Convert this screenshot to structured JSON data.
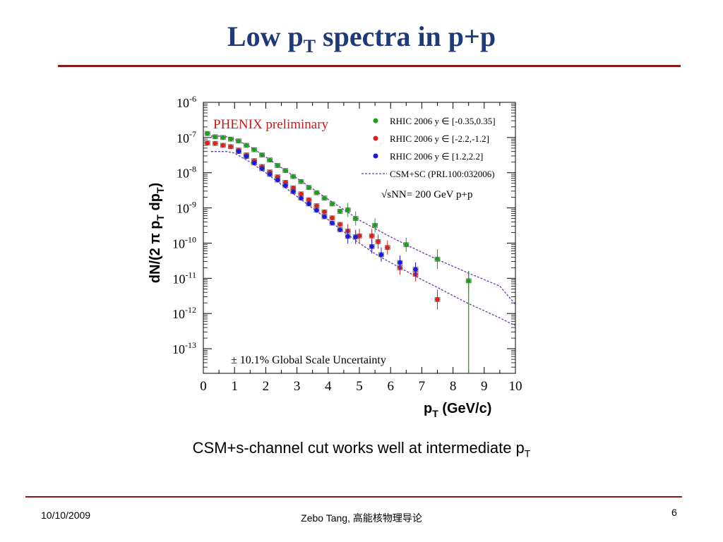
{
  "slide": {
    "title_main": "Low p",
    "title_sub": "T",
    "title_rest": " spectra in p+p",
    "caption_main": "CSM+s-channel cut works well at intermediate p",
    "caption_sub": "T",
    "footer_date": "10/10/2009",
    "footer_author": "Zebo Tang, 高能核物理导论",
    "footer_page": "6"
  },
  "chart_data": {
    "type": "scatter",
    "annotation_preliminary": "PHENIX preliminary",
    "annotation_energy": "√sNN= 200 GeV p+p",
    "annotation_uncertainty": "± 10.1% Global Scale Uncertainty",
    "xlabel": "pT (GeV/c)",
    "ylabel": "dN/(2 π pT dpT)",
    "xlim": [
      0,
      10
    ],
    "ylim_log10": [
      -13.7,
      -6
    ],
    "y_scale": "log",
    "legend_position": "top-right",
    "x_ticks": [
      "0",
      "1",
      "2",
      "3",
      "4",
      "5",
      "6",
      "7",
      "8",
      "9",
      "10"
    ],
    "y_tick_exponents": [
      "-6",
      "-7",
      "-8",
      "-9",
      "-10",
      "-11",
      "-12",
      "-13"
    ],
    "colors": {
      "green": "#1aa01a",
      "red": "#e0201a",
      "blue": "#1a1ae0",
      "model": "#6a3aaa",
      "annotation": "#d01818"
    },
    "series": [
      {
        "name": "RHIC 2006 y ∈ [-0.35,0.35]",
        "color": "#1aa01a",
        "points": [
          {
            "x": 0.13,
            "y": 1.3e-07
          },
          {
            "x": 0.38,
            "y": 1.05e-07
          },
          {
            "x": 0.63,
            "y": 1e-07
          },
          {
            "x": 0.88,
            "y": 9e-08
          },
          {
            "x": 1.13,
            "y": 8e-08
          },
          {
            "x": 1.38,
            "y": 6e-08
          },
          {
            "x": 1.63,
            "y": 4.5e-08
          },
          {
            "x": 1.88,
            "y": 3.2e-08
          },
          {
            "x": 2.13,
            "y": 2.3e-08
          },
          {
            "x": 2.38,
            "y": 1.6e-08
          },
          {
            "x": 2.63,
            "y": 1.15e-08
          },
          {
            "x": 2.88,
            "y": 7.8e-09
          },
          {
            "x": 3.13,
            "y": 5.6e-09
          },
          {
            "x": 3.38,
            "y": 3.8e-09
          },
          {
            "x": 3.63,
            "y": 2.7e-09
          },
          {
            "x": 3.88,
            "y": 1.9e-09
          },
          {
            "x": 4.13,
            "y": 1.3e-09
          },
          {
            "x": 4.38,
            "y": 8e-10
          },
          {
            "x": 4.63,
            "y": 8.8e-10
          },
          {
            "x": 4.88,
            "y": 5e-10
          },
          {
            "x": 5.5,
            "y": 3.2e-10
          },
          {
            "x": 6.5,
            "y": 9e-11
          },
          {
            "x": 7.5,
            "y": 3.5e-11
          },
          {
            "x": 8.5,
            "y": 8.5e-12
          }
        ]
      },
      {
        "name": "RHIC 2006 y ∈ [-2.2,-1.2]",
        "color": "#e0201a",
        "points": [
          {
            "x": 0.13,
            "y": 7e-08
          },
          {
            "x": 0.38,
            "y": 6.8e-08
          },
          {
            "x": 0.63,
            "y": 6e-08
          },
          {
            "x": 0.88,
            "y": 5.5e-08
          },
          {
            "x": 1.13,
            "y": 4.4e-08
          },
          {
            "x": 1.38,
            "y": 3.2e-08
          },
          {
            "x": 1.63,
            "y": 2.2e-08
          },
          {
            "x": 1.88,
            "y": 1.5e-08
          },
          {
            "x": 2.13,
            "y": 1.05e-08
          },
          {
            "x": 2.38,
            "y": 7.6e-09
          },
          {
            "x": 2.63,
            "y": 5.3e-09
          },
          {
            "x": 2.88,
            "y": 3.7e-09
          },
          {
            "x": 3.13,
            "y": 2.5e-09
          },
          {
            "x": 3.38,
            "y": 1.7e-09
          },
          {
            "x": 3.63,
            "y": 1.15e-09
          },
          {
            "x": 3.88,
            "y": 7.7e-10
          },
          {
            "x": 4.13,
            "y": 5.2e-10
          },
          {
            "x": 4.38,
            "y": 3.4e-10
          },
          {
            "x": 4.63,
            "y": 2.2e-10
          },
          {
            "x": 5.0,
            "y": 1.6e-10
          },
          {
            "x": 5.4,
            "y": 1.6e-10
          },
          {
            "x": 5.6,
            "y": 1.1e-10
          },
          {
            "x": 5.9,
            "y": 7.5e-11
          },
          {
            "x": 6.3,
            "y": 2e-11
          },
          {
            "x": 6.8,
            "y": 1.3e-11
          },
          {
            "x": 7.5,
            "y": 2.5e-12
          }
        ]
      },
      {
        "name": "RHIC 2006 y ∈ [1.2,2.2]",
        "color": "#1a1ae0",
        "points": [
          {
            "x": 1.13,
            "y": 4e-08
          },
          {
            "x": 1.38,
            "y": 2.9e-08
          },
          {
            "x": 1.63,
            "y": 1.9e-08
          },
          {
            "x": 1.88,
            "y": 1.3e-08
          },
          {
            "x": 2.13,
            "y": 9e-09
          },
          {
            "x": 2.38,
            "y": 6.2e-09
          },
          {
            "x": 2.63,
            "y": 4.3e-09
          },
          {
            "x": 2.88,
            "y": 2.9e-09
          },
          {
            "x": 3.13,
            "y": 1.9e-09
          },
          {
            "x": 3.38,
            "y": 1.3e-09
          },
          {
            "x": 3.63,
            "y": 8.6e-10
          },
          {
            "x": 3.88,
            "y": 5.6e-10
          },
          {
            "x": 4.13,
            "y": 3.7e-10
          },
          {
            "x": 4.38,
            "y": 2.4e-10
          },
          {
            "x": 4.63,
            "y": 1.55e-10
          },
          {
            "x": 4.88,
            "y": 1.5e-10
          },
          {
            "x": 5.4,
            "y": 8e-11
          },
          {
            "x": 5.7,
            "y": 4.7e-11
          },
          {
            "x": 6.3,
            "y": 2.8e-11
          },
          {
            "x": 6.8,
            "y": 1.8e-11
          }
        ]
      },
      {
        "name": "CSM+SC (PRL100:032006)",
        "color": "#6a3aaa",
        "style": "dashed-line",
        "points": [
          {
            "x": 0.25,
            "y": 4e-08
          },
          {
            "x": 0.5,
            "y": 4e-08
          },
          {
            "x": 0.75,
            "y": 4e-08
          },
          {
            "x": 1.0,
            "y": 3.6e-08
          },
          {
            "x": 1.5,
            "y": 2e-08
          },
          {
            "x": 2.0,
            "y": 1e-08
          },
          {
            "x": 2.5,
            "y": 4.6e-09
          },
          {
            "x": 3.0,
            "y": 2.1e-09
          },
          {
            "x": 3.5,
            "y": 9.8e-10
          },
          {
            "x": 4.0,
            "y": 4.6e-10
          },
          {
            "x": 4.5,
            "y": 2.1e-10
          },
          {
            "x": 5.0,
            "y": 1e-10
          },
          {
            "x": 5.5,
            "y": 5e-11
          },
          {
            "x": 6.0,
            "y": 2.8e-11
          },
          {
            "x": 6.5,
            "y": 1.6e-11
          },
          {
            "x": 7.0,
            "y": 9.2e-12
          },
          {
            "x": 7.5,
            "y": 5.5e-12
          },
          {
            "x": 8.0,
            "y": 3.2e-12
          },
          {
            "x": 8.5,
            "y": 1.9e-12
          },
          {
            "x": 9.0,
            "y": 1.2e-12
          },
          {
            "x": 9.5,
            "y": 7.5e-13
          },
          {
            "x": 10.0,
            "y": 4.5e-13
          }
        ]
      },
      {
        "name": "",
        "color": "#6a3aaa",
        "style": "dashed-line",
        "points": [
          {
            "x": 0.25,
            "y": 1.1e-07
          },
          {
            "x": 0.5,
            "y": 1.1e-07
          },
          {
            "x": 0.75,
            "y": 1.05e-07
          },
          {
            "x": 1.0,
            "y": 9e-08
          },
          {
            "x": 1.5,
            "y": 5.5e-08
          },
          {
            "x": 2.0,
            "y": 2.8e-08
          },
          {
            "x": 2.5,
            "y": 1.4e-08
          },
          {
            "x": 3.0,
            "y": 7e-09
          },
          {
            "x": 3.5,
            "y": 3.5e-09
          },
          {
            "x": 4.0,
            "y": 1.75e-09
          },
          {
            "x": 4.5,
            "y": 9e-10
          },
          {
            "x": 5.0,
            "y": 4.5e-10
          },
          {
            "x": 5.5,
            "y": 2.6e-10
          },
          {
            "x": 6.0,
            "y": 1.5e-10
          },
          {
            "x": 6.5,
            "y": 9e-11
          },
          {
            "x": 7.0,
            "y": 5.5e-11
          },
          {
            "x": 7.5,
            "y": 3.4e-11
          },
          {
            "x": 8.0,
            "y": 2.2e-11
          },
          {
            "x": 8.5,
            "y": 1.4e-11
          },
          {
            "x": 9.0,
            "y": 9.2e-12
          },
          {
            "x": 9.5,
            "y": 6e-12
          },
          {
            "x": 10.0,
            "y": 1.8e-12
          }
        ]
      }
    ]
  }
}
